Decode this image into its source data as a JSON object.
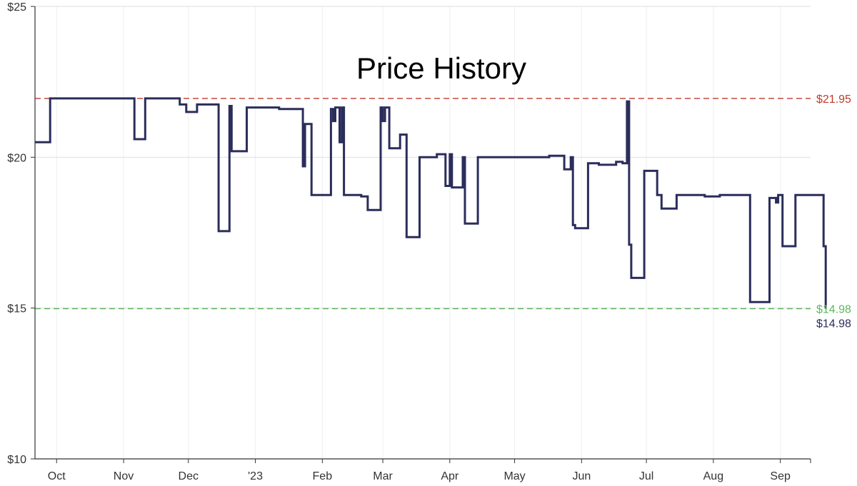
{
  "chart_data": {
    "type": "line",
    "title": "Price History",
    "xlabel": "",
    "ylabel": "",
    "y_ticks": [
      "$10",
      "$15",
      "$20",
      "$25"
    ],
    "ylim": [
      10,
      25
    ],
    "x_ticks": [
      "Oct",
      "Nov",
      "Dec",
      "'23",
      "Feb",
      "Mar",
      "Apr",
      "May",
      "Jun",
      "Jul",
      "Aug",
      "Sep"
    ],
    "xlim": [
      "2022-09-21",
      "2023-09-15"
    ],
    "grid": true,
    "step": true,
    "series": [
      {
        "color": "#2b2d5b",
        "points": [
          [
            "2022-09-21",
            20.5
          ],
          [
            "2022-09-28",
            21.95
          ],
          [
            "2022-11-06",
            20.6
          ],
          [
            "2022-11-11",
            21.95
          ],
          [
            "2022-11-27",
            21.75
          ],
          [
            "2022-11-30",
            21.5
          ],
          [
            "2022-12-05",
            21.75
          ],
          [
            "2022-12-15",
            17.55
          ],
          [
            "2022-12-20",
            21.7
          ],
          [
            "2022-12-21",
            20.2
          ],
          [
            "2022-12-28",
            21.65
          ],
          [
            "2023-01-12",
            21.6
          ],
          [
            "2023-01-23",
            19.7
          ],
          [
            "2023-01-24",
            21.1
          ],
          [
            "2023-01-27",
            18.75
          ],
          [
            "2023-02-05",
            21.6
          ],
          [
            "2023-02-06",
            21.2
          ],
          [
            "2023-02-07",
            21.65
          ],
          [
            "2023-02-09",
            20.5
          ],
          [
            "2023-02-10",
            21.65
          ],
          [
            "2023-02-11",
            18.75
          ],
          [
            "2023-02-19",
            18.7
          ],
          [
            "2023-02-22",
            18.25
          ],
          [
            "2023-02-28",
            21.65
          ],
          [
            "2023-03-01",
            21.2
          ],
          [
            "2023-03-02",
            21.65
          ],
          [
            "2023-03-04",
            20.3
          ],
          [
            "2023-03-09",
            20.75
          ],
          [
            "2023-03-12",
            17.35
          ],
          [
            "2023-03-18",
            20.0
          ],
          [
            "2023-03-26",
            20.1
          ],
          [
            "2023-03-30",
            19.05
          ],
          [
            "2023-04-01",
            20.1
          ],
          [
            "2023-04-02",
            19.0
          ],
          [
            "2023-04-07",
            20.0
          ],
          [
            "2023-04-08",
            17.8
          ],
          [
            "2023-04-14",
            20.0
          ],
          [
            "2023-05-17",
            20.05
          ],
          [
            "2023-05-24",
            19.6
          ],
          [
            "2023-05-27",
            20.0
          ],
          [
            "2023-05-28",
            17.75
          ],
          [
            "2023-05-29",
            17.65
          ],
          [
            "2023-06-04",
            19.8
          ],
          [
            "2023-06-05",
            19.8
          ],
          [
            "2023-06-09",
            19.75
          ],
          [
            "2023-06-17",
            19.85
          ],
          [
            "2023-06-20",
            19.8
          ],
          [
            "2023-06-22",
            21.85
          ],
          [
            "2023-06-23",
            17.1
          ],
          [
            "2023-06-24",
            16.0
          ],
          [
            "2023-06-30",
            19.55
          ],
          [
            "2023-07-06",
            18.75
          ],
          [
            "2023-07-08",
            18.3
          ],
          [
            "2023-07-15",
            18.75
          ],
          [
            "2023-07-28",
            18.7
          ],
          [
            "2023-08-04",
            18.75
          ],
          [
            "2023-08-18",
            15.2
          ],
          [
            "2023-08-27",
            18.65
          ],
          [
            "2023-08-30",
            18.5
          ],
          [
            "2023-08-31",
            18.75
          ],
          [
            "2023-09-02",
            17.05
          ],
          [
            "2023-09-08",
            18.75
          ],
          [
            "2023-09-21",
            17.05
          ],
          [
            "2023-09-22",
            14.98
          ],
          [
            "2023-09-22",
            14.98
          ]
        ]
      }
    ],
    "reference_lines": [
      {
        "label": "$21.95",
        "value": 21.95,
        "color": "#c0392b",
        "style": "dashed"
      },
      {
        "label": "$14.98",
        "value": 14.98,
        "color": "#5cb85c",
        "style": "dashed"
      }
    ],
    "current_value_label": "$14.98",
    "legend": "none"
  }
}
